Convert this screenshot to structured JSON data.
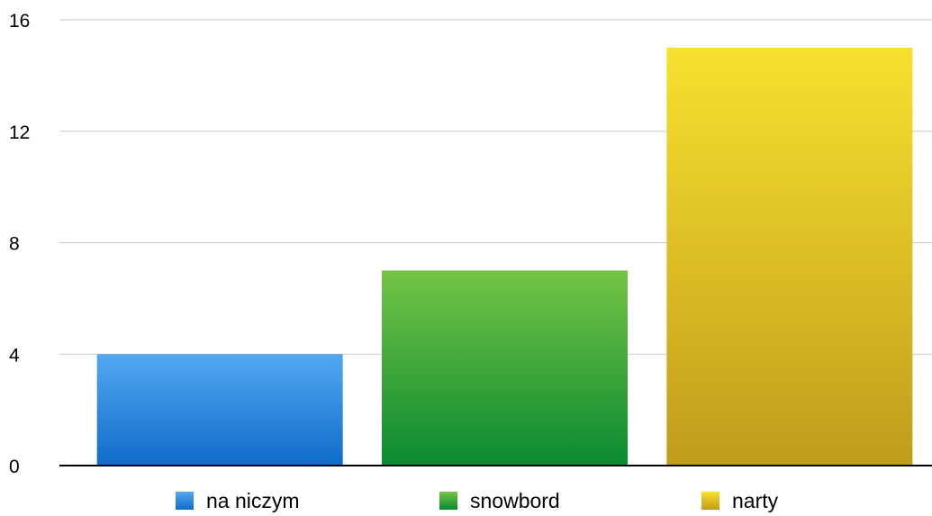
{
  "chart_data": {
    "type": "bar",
    "categories": [
      "na niczym",
      "snowbord",
      "narty"
    ],
    "values": [
      4,
      7,
      15
    ],
    "colors": {
      "na niczym": {
        "top": "#54a8f2",
        "bottom": "#0f6cc9"
      },
      "snowbord": {
        "top": "#74c446",
        "bottom": "#0a8a31"
      },
      "narty": {
        "top": "#f8e02e",
        "bottom": "#c09c1c"
      }
    },
    "title": "",
    "xlabel": "",
    "ylabel": "",
    "ylim": [
      0,
      16
    ],
    "yticks": [
      "0",
      "4",
      "8",
      "12",
      "16"
    ],
    "grid": true,
    "legend_position": "bottom",
    "legend": [
      "na niczym",
      "snowbord",
      "narty"
    ]
  }
}
